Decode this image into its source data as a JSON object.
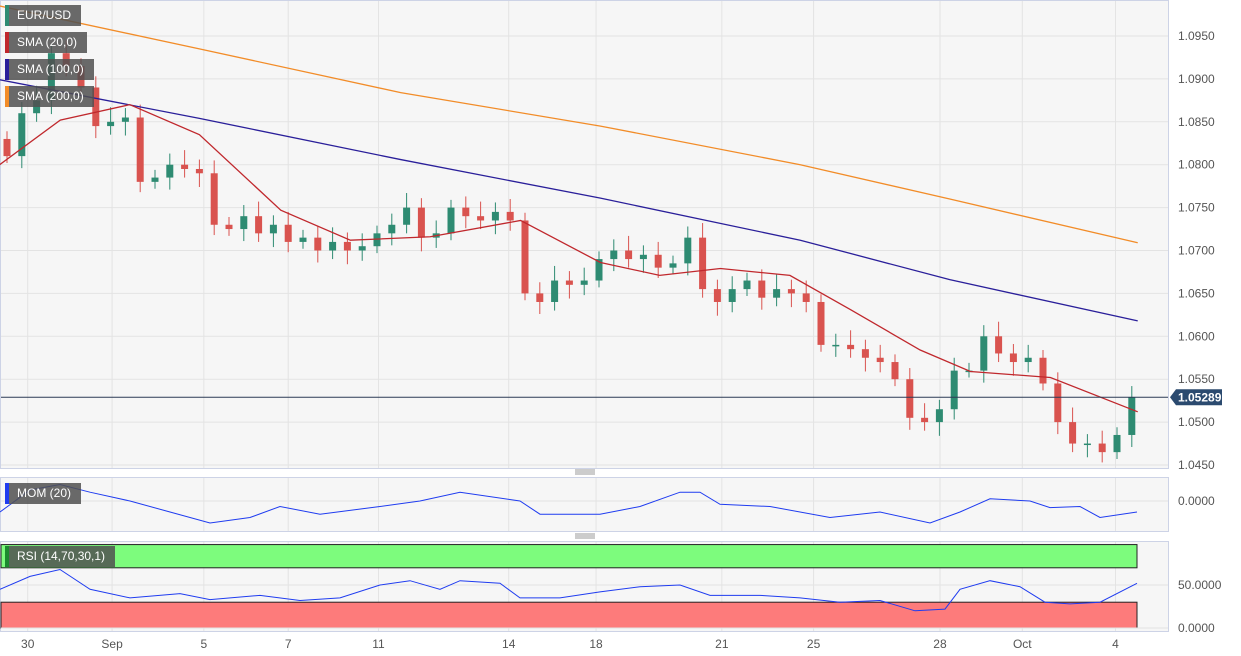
{
  "chart_data": {
    "type": "candlestick",
    "symbol": "EUR/USD",
    "legend": [
      "EUR/USD",
      "SMA (20,0)",
      "SMA (100,0)",
      "SMA (200,0)"
    ],
    "legend_colors": {
      "EUR/USD": "#2e8b72",
      "SMA (20,0)": "#c0282d",
      "SMA (100,0)": "#2a1f9a",
      "SMA (200,0)": "#f28c28"
    },
    "x_tick_labels": [
      {
        "label": "30",
        "i": 1.4
      },
      {
        "label": "Sep",
        "i": 7.1
      },
      {
        "label": "5",
        "i": 13.3
      },
      {
        "label": "7",
        "i": 19
      },
      {
        "label": "11",
        "i": 25.1
      },
      {
        "label": "14",
        "i": 33.9
      },
      {
        "label": "18",
        "i": 39.8
      },
      {
        "label": "21",
        "i": 48.3
      },
      {
        "label": "25",
        "i": 54.5
      },
      {
        "label": "28",
        "i": 63.04
      },
      {
        "label": "Oct",
        "i": 68.6
      },
      {
        "label": "4",
        "i": 74.9
      }
    ],
    "y_ticks": [
      "1.0950",
      "1.0900",
      "1.0850",
      "1.0800",
      "1.0750",
      "1.0700",
      "1.0650",
      "1.0600",
      "1.0550",
      "1.0500",
      "1.0450"
    ],
    "ylim": [
      1.04455,
      1.0992
    ],
    "first_open": 1.083,
    "closes": [
      1.081,
      1.086,
      1.0875,
      1.093,
      1.0915,
      1.089,
      1.0845,
      1.085,
      1.0855,
      1.078,
      1.0785,
      1.08,
      1.0795,
      1.079,
      1.073,
      1.0725,
      1.074,
      1.072,
      1.073,
      1.071,
      1.0715,
      1.07,
      1.071,
      1.07,
      1.0705,
      1.072,
      1.073,
      1.075,
      1.0715,
      1.072,
      1.075,
      1.074,
      1.0735,
      1.0745,
      1.0735,
      1.065,
      1.064,
      1.0665,
      1.066,
      1.0665,
      1.069,
      1.07,
      1.069,
      1.0695,
      1.068,
      1.0685,
      1.0715,
      1.0655,
      1.064,
      1.0655,
      1.0665,
      1.0645,
      1.0655,
      1.065,
      1.064,
      1.059,
      1.059,
      1.0585,
      1.0575,
      1.057,
      1.055,
      1.0505,
      1.05,
      1.0515,
      1.056,
      1.056,
      1.06,
      1.058,
      1.057,
      1.0575,
      1.0545,
      1.05,
      1.0475,
      1.0475,
      1.0465,
      1.0485,
      1.0529
    ],
    "last_price": "1.05289",
    "sma20": [
      [
        -0.5,
        1.08
      ],
      [
        3.6,
        1.0852
      ],
      [
        8.3,
        1.087
      ],
      [
        13,
        1.0835
      ],
      [
        18.5,
        1.0747
      ],
      [
        23.2,
        1.0712
      ],
      [
        28.6,
        1.0716
      ],
      [
        34.7,
        1.0735
      ],
      [
        40.1,
        1.0686
      ],
      [
        44.1,
        1.0671
      ],
      [
        48.2,
        1.0679
      ],
      [
        52.9,
        1.0671
      ],
      [
        57,
        1.0631
      ],
      [
        61.7,
        1.0584
      ],
      [
        65.1,
        1.0559
      ],
      [
        70.5,
        1.0552
      ],
      [
        76.4,
        1.0512
      ]
    ],
    "sma100": [
      [
        -0.5,
        1.0899
      ],
      [
        13,
        1.0854
      ],
      [
        26.6,
        1.0806
      ],
      [
        40.1,
        1.0761
      ],
      [
        53.6,
        1.0712
      ],
      [
        63.7,
        1.0666
      ],
      [
        76.4,
        1.0618
      ]
    ],
    "sma200": [
      [
        -0.5,
        1.0985
      ],
      [
        13,
        1.0935
      ],
      [
        26.6,
        1.0884
      ],
      [
        40.1,
        1.0845
      ],
      [
        53.6,
        1.08
      ],
      [
        63.7,
        1.076
      ],
      [
        76.4,
        1.0709
      ]
    ],
    "indicators": {
      "mom": {
        "label": "MOM (20)",
        "tick": "0.0000",
        "color": "#1f3cf0",
        "points": [
          [
            0,
            -0.01
          ],
          [
            30,
            0.01
          ],
          [
            60,
            0.015
          ],
          [
            90,
            0.008
          ],
          [
            130,
            0.0
          ],
          [
            170,
            -0.01
          ],
          [
            210,
            -0.02
          ],
          [
            250,
            -0.015
          ],
          [
            280,
            -0.005
          ],
          [
            320,
            -0.012
          ],
          [
            380,
            -0.005
          ],
          [
            420,
            0.0
          ],
          [
            460,
            0.008
          ],
          [
            520,
            0.0
          ],
          [
            540,
            -0.012
          ],
          [
            600,
            -0.012
          ],
          [
            640,
            -0.005
          ],
          [
            680,
            0.008
          ],
          [
            700,
            0.008
          ],
          [
            720,
            -0.003
          ],
          [
            770,
            -0.005
          ],
          [
            830,
            -0.015
          ],
          [
            880,
            -0.01
          ],
          [
            930,
            -0.02
          ],
          [
            960,
            -0.01
          ],
          [
            990,
            0.002
          ],
          [
            1030,
            0.0
          ],
          [
            1050,
            -0.006
          ],
          [
            1080,
            -0.005
          ],
          [
            1100,
            -0.015
          ],
          [
            1137,
            -0.01
          ]
        ]
      },
      "rsi": {
        "label": "RSI (14,70,30,1)",
        "ticks": [
          "50.0000",
          "0.0000"
        ],
        "overbought": 70,
        "oversold": 30,
        "color": "#1f3cf0",
        "points": [
          [
            0,
            45
          ],
          [
            30,
            60
          ],
          [
            60,
            68
          ],
          [
            90,
            45
          ],
          [
            130,
            35
          ],
          [
            180,
            40
          ],
          [
            210,
            33
          ],
          [
            260,
            38
          ],
          [
            300,
            32
          ],
          [
            340,
            35
          ],
          [
            380,
            50
          ],
          [
            410,
            55
          ],
          [
            440,
            45
          ],
          [
            460,
            55
          ],
          [
            500,
            52
          ],
          [
            520,
            35
          ],
          [
            560,
            35
          ],
          [
            600,
            42
          ],
          [
            640,
            48
          ],
          [
            680,
            50
          ],
          [
            710,
            38
          ],
          [
            760,
            38
          ],
          [
            800,
            35
          ],
          [
            840,
            30
          ],
          [
            880,
            32
          ],
          [
            915,
            20
          ],
          [
            945,
            22
          ],
          [
            960,
            45
          ],
          [
            990,
            55
          ],
          [
            1020,
            48
          ],
          [
            1045,
            30
          ],
          [
            1070,
            28
          ],
          [
            1100,
            30
          ],
          [
            1137,
            52
          ]
        ]
      }
    }
  }
}
